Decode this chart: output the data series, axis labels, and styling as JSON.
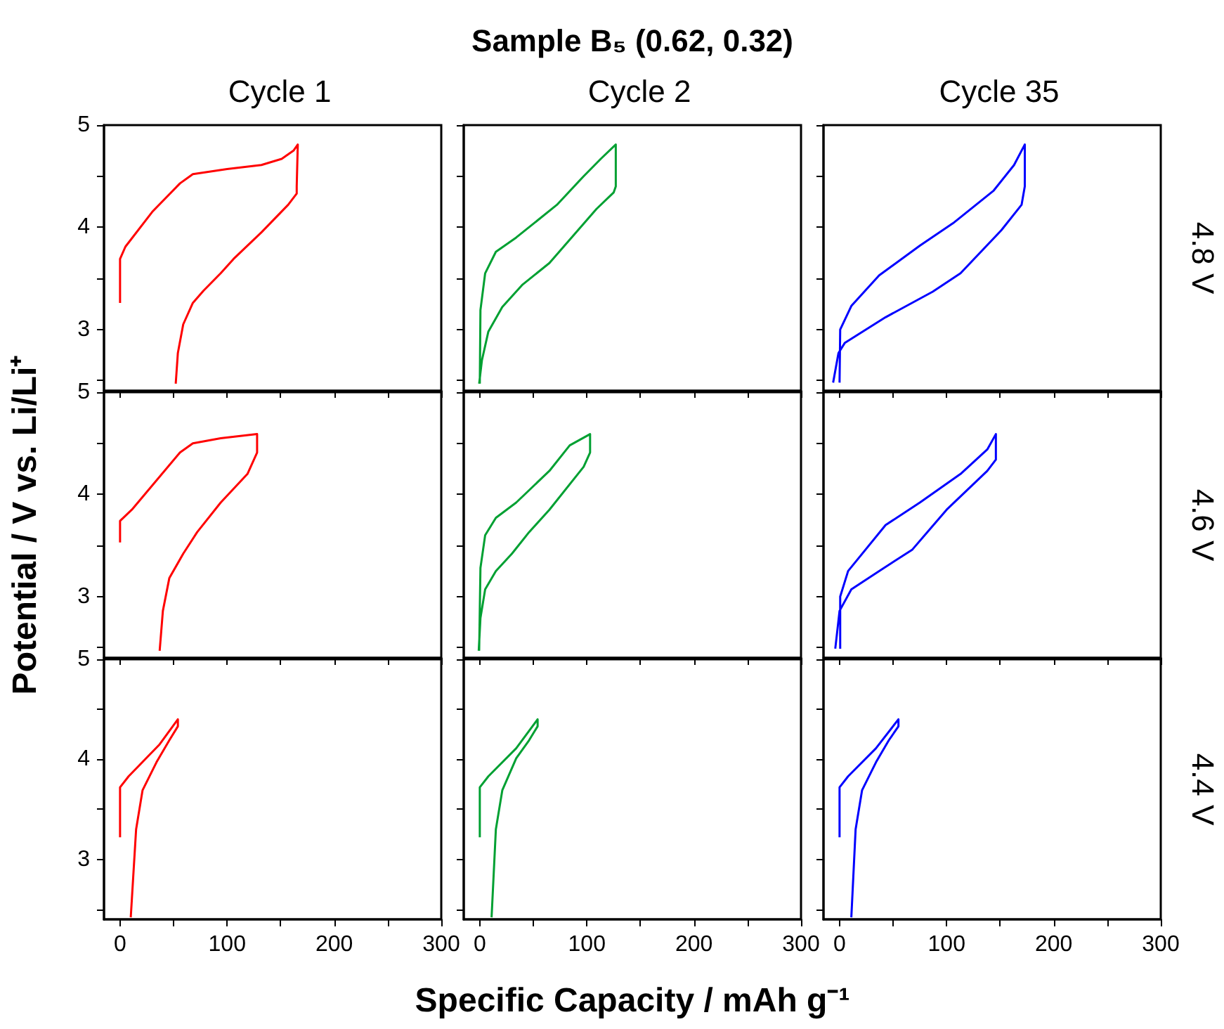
{
  "chart_data": [
    {
      "type": "line",
      "title": "Cycle 1",
      "tick_labels": "y",
      "xlim": [
        -15,
        300
      ],
      "xticks": [
        0,
        {
          "value": 50,
          "label": null
        },
        100,
        {
          "value": 150,
          "label": null
        },
        200,
        {
          "value": 250,
          "label": null
        },
        300
      ],
      "ylim": [
        2.4,
        5
      ],
      "yticks": [
        {
          "value": 2.5,
          "label": null
        },
        3,
        {
          "value": 3.5,
          "label": null
        },
        4,
        {
          "value": 4.5,
          "label": null
        },
        5
      ],
      "series": [
        {
          "color": "#ff0000",
          "x": [
            0,
            0,
            5,
            30,
            56,
            68,
            100,
            132,
            151,
            162,
            166,
            165,
            165,
            157,
            132,
            106,
            94,
            78,
            68,
            59,
            54,
            52
          ],
          "values": [
            3.26,
            3.69,
            3.81,
            4.15,
            4.43,
            4.52,
            4.57,
            4.61,
            4.67,
            4.75,
            4.81,
            4.4,
            4.33,
            4.22,
            3.95,
            3.69,
            3.55,
            3.38,
            3.26,
            3.05,
            2.77,
            2.47
          ]
        }
      ]
    },
    {
      "type": "line",
      "title": "Cycle 2",
      "annotations": [
        "Sample B₅ (0.62, 0.32)"
      ],
      "tick_labels": false,
      "xlim": [
        -15,
        300
      ],
      "xticks": [
        0,
        {
          "value": 50,
          "label": null
        },
        100,
        {
          "value": 150,
          "label": null
        },
        200,
        {
          "value": 250,
          "label": null
        },
        300
      ],
      "ylim": [
        2.4,
        5
      ],
      "yticks": [
        {
          "value": 2.5,
          "label": null
        },
        3,
        {
          "value": 3.5,
          "label": null
        },
        4,
        {
          "value": 4.5,
          "label": null
        },
        5
      ],
      "series": [
        {
          "color": "#00a032",
          "x": [
            0,
            0.6,
            5,
            15,
            34,
            72,
            97,
            113,
            127,
            127,
            125,
            109,
            65,
            40,
            21,
            8,
            2,
            -0.6
          ],
          "values": [
            2.47,
            3.19,
            3.55,
            3.76,
            3.9,
            4.22,
            4.5,
            4.67,
            4.81,
            4.4,
            4.34,
            4.18,
            3.65,
            3.44,
            3.22,
            2.98,
            2.7,
            2.47
          ]
        }
      ]
    },
    {
      "type": "line",
      "title": "Cycle 35",
      "annotations": [
        "4.8 V"
      ],
      "tick_labels": false,
      "xlim": [
        -15,
        300
      ],
      "xticks": [
        0,
        {
          "value": 50,
          "label": null
        },
        100,
        {
          "value": 150,
          "label": null
        },
        200,
        {
          "value": 250,
          "label": null
        },
        300
      ],
      "ylim": [
        2.4,
        5
      ],
      "yticks": [
        {
          "value": 2.5,
          "label": null
        },
        3,
        {
          "value": 3.5,
          "label": null
        },
        4,
        {
          "value": 4.5,
          "label": null
        },
        5
      ],
      "series": [
        {
          "color": "#0000ff",
          "x": [
            0,
            0.6,
            11,
            37,
            75,
            106,
            144,
            163,
            173,
            173,
            170,
            151,
            113,
            87,
            43,
            5,
            -1,
            -6
          ],
          "values": [
            2.48,
            3.0,
            3.23,
            3.53,
            3.82,
            4.04,
            4.36,
            4.61,
            4.81,
            4.4,
            4.22,
            3.97,
            3.55,
            3.37,
            3.12,
            2.87,
            2.77,
            2.48
          ]
        }
      ]
    },
    {
      "type": "line",
      "ylabel": "Potential / V vs. Li/Li⁺",
      "tick_labels": "y",
      "xlim": [
        -15,
        300
      ],
      "xticks": [
        0,
        {
          "value": 50,
          "label": null
        },
        100,
        {
          "value": 150,
          "label": null
        },
        200,
        {
          "value": 250,
          "label": null
        },
        300
      ],
      "ylim": [
        2.4,
        5
      ],
      "yticks": [
        {
          "value": 2.5,
          "label": null
        },
        3,
        {
          "value": 3.5,
          "label": null
        },
        4,
        {
          "value": 4.5,
          "label": null
        },
        5
      ],
      "series": [
        {
          "color": "#ff0000",
          "x": [
            0,
            0,
            11,
            56,
            68,
            94,
            128,
            128,
            119,
            94,
            72,
            59,
            46,
            40,
            37
          ],
          "values": [
            3.53,
            3.74,
            3.85,
            4.41,
            4.5,
            4.55,
            4.59,
            4.41,
            4.2,
            3.92,
            3.63,
            3.42,
            3.18,
            2.86,
            2.47
          ]
        }
      ]
    },
    {
      "type": "line",
      "tick_labels": false,
      "xlim": [
        -15,
        300
      ],
      "xticks": [
        0,
        {
          "value": 50,
          "label": null
        },
        100,
        {
          "value": 150,
          "label": null
        },
        200,
        {
          "value": 250,
          "label": null
        },
        300
      ],
      "ylim": [
        2.4,
        5
      ],
      "yticks": [
        {
          "value": 2.5,
          "label": null
        },
        3,
        {
          "value": 3.5,
          "label": null
        },
        4,
        {
          "value": 4.5,
          "label": null
        },
        5
      ],
      "series": [
        {
          "color": "#00a032",
          "x": [
            -0.6,
            0.6,
            5,
            15,
            34,
            65,
            84,
            103,
            103,
            97,
            65,
            46,
            30,
            15,
            5,
            0.6,
            -1
          ],
          "values": [
            2.47,
            3.28,
            3.6,
            3.77,
            3.92,
            4.23,
            4.48,
            4.59,
            4.41,
            4.27,
            3.85,
            3.63,
            3.42,
            3.25,
            3.07,
            2.79,
            2.47
          ]
        }
      ]
    },
    {
      "type": "line",
      "annotations": [
        "4.6 V"
      ],
      "tick_labels": false,
      "xlim": [
        -15,
        300
      ],
      "xticks": [
        0,
        {
          "value": 50,
          "label": null
        },
        100,
        {
          "value": 150,
          "label": null
        },
        200,
        {
          "value": 250,
          "label": null
        },
        300
      ],
      "ylim": [
        2.4,
        5
      ],
      "yticks": [
        {
          "value": 2.5,
          "label": null
        },
        3,
        {
          "value": 3.5,
          "label": null
        },
        4,
        {
          "value": 4.5,
          "label": null
        },
        5
      ],
      "series": [
        {
          "color": "#0000ff",
          "x": [
            0.6,
            0.6,
            8,
            43,
            75,
            113,
            138,
            146,
            146,
            138,
            100,
            68,
            37,
            11,
            0,
            -4
          ],
          "values": [
            2.49,
            3.0,
            3.25,
            3.7,
            3.92,
            4.2,
            4.44,
            4.59,
            4.34,
            4.23,
            3.85,
            3.46,
            3.25,
            3.07,
            2.86,
            2.49
          ]
        }
      ]
    },
    {
      "type": "line",
      "xlim": [
        -15,
        300
      ],
      "xticks": [
        0,
        {
          "value": 50,
          "label": null
        },
        100,
        {
          "value": 150,
          "label": null
        },
        200,
        {
          "value": 250,
          "label": null
        },
        300
      ],
      "ylim": [
        2.4,
        5
      ],
      "yticks": [
        {
          "value": 2.5,
          "label": null
        },
        3,
        {
          "value": 3.5,
          "label": null
        },
        4,
        {
          "value": 4.5,
          "label": null
        },
        5
      ],
      "series": [
        {
          "color": "#ff0000",
          "x": [
            0,
            0,
            8,
            37,
            54,
            54,
            46,
            34,
            21,
            15,
            10
          ],
          "values": [
            3.22,
            3.72,
            3.83,
            4.15,
            4.4,
            4.33,
            4.19,
            3.97,
            3.69,
            3.3,
            2.42
          ]
        }
      ]
    },
    {
      "type": "line",
      "xlabel": "Specific Capacity / mAh g⁻¹",
      "tick_labels": "x",
      "xlim": [
        -15,
        300
      ],
      "xticks": [
        0,
        {
          "value": 50,
          "label": null
        },
        100,
        {
          "value": 150,
          "label": null
        },
        200,
        {
          "value": 250,
          "label": null
        },
        300
      ],
      "ylim": [
        2.4,
        5
      ],
      "yticks": [
        {
          "value": 2.5,
          "label": null
        },
        3,
        {
          "value": 3.5,
          "label": null
        },
        4,
        {
          "value": 4.5,
          "label": null
        },
        5
      ],
      "series": [
        {
          "color": "#00a032",
          "x": [
            0,
            0,
            8,
            34,
            54,
            54,
            46,
            34,
            21,
            15,
            11
          ],
          "values": [
            3.22,
            3.72,
            3.83,
            4.11,
            4.4,
            4.33,
            4.19,
            4.01,
            3.69,
            3.3,
            2.42
          ]
        }
      ]
    },
    {
      "type": "line",
      "annotations": [
        "4.4 V"
      ],
      "tick_labels": "x",
      "xlim": [
        -15,
        300
      ],
      "xticks": [
        0,
        {
          "value": 50,
          "label": null
        },
        100,
        {
          "value": 150,
          "label": null
        },
        200,
        {
          "value": 250,
          "label": null
        },
        300
      ],
      "ylim": [
        2.4,
        5
      ],
      "yticks": [
        {
          "value": 2.5,
          "label": null
        },
        3,
        {
          "value": 3.5,
          "label": null
        },
        4,
        {
          "value": 4.5,
          "label": null
        },
        5
      ],
      "series": [
        {
          "color": "#0000ff",
          "x": [
            0,
            0,
            8,
            34,
            55,
            55,
            46,
            34,
            21,
            15,
            11
          ],
          "values": [
            3.22,
            3.72,
            3.83,
            4.11,
            4.4,
            4.33,
            4.19,
            3.97,
            3.69,
            3.3,
            2.42
          ]
        }
      ]
    }
  ]
}
